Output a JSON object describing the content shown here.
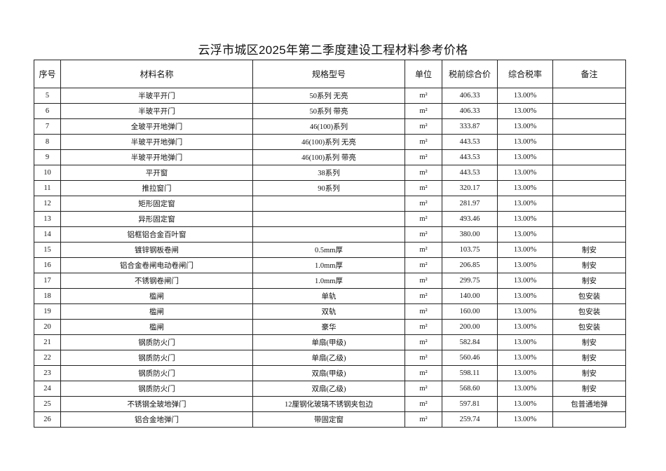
{
  "title": "云浮市城区2025年第二季度建设工程材料参考价格",
  "headers": [
    "序号",
    "材料名称",
    "规格型号",
    "单位",
    "税前综合价",
    "综合税率",
    "备注"
  ],
  "rows": [
    {
      "no": "5",
      "name": "半玻平开门",
      "spec": "50系列  无亮",
      "unit": "m²",
      "price": "406.33",
      "tax": "13.00%",
      "note": ""
    },
    {
      "no": "6",
      "name": "半玻平开门",
      "spec": "50系列  带亮",
      "unit": "m²",
      "price": "406.33",
      "tax": "13.00%",
      "note": ""
    },
    {
      "no": "7",
      "name": "全玻平开地弹门",
      "spec": "46(100)系列",
      "unit": "m²",
      "price": "333.87",
      "tax": "13.00%",
      "note": ""
    },
    {
      "no": "8",
      "name": "半玻平开地弹门",
      "spec": "46(100)系列  无亮",
      "unit": "m²",
      "price": "443.53",
      "tax": "13.00%",
      "note": ""
    },
    {
      "no": "9",
      "name": "半玻平开地弹门",
      "spec": "46(100)系列  带亮",
      "unit": "m²",
      "price": "443.53",
      "tax": "13.00%",
      "note": ""
    },
    {
      "no": "10",
      "name": "平开窗",
      "spec": "38系列",
      "unit": "m²",
      "price": "443.53",
      "tax": "13.00%",
      "note": ""
    },
    {
      "no": "11",
      "name": "推拉窗门",
      "spec": "90系列",
      "unit": "m²",
      "price": "320.17",
      "tax": "13.00%",
      "note": ""
    },
    {
      "no": "12",
      "name": "矩形固定窗",
      "spec": "",
      "unit": "m²",
      "price": "281.97",
      "tax": "13.00%",
      "note": ""
    },
    {
      "no": "13",
      "name": "异形固定窗",
      "spec": "",
      "unit": "m²",
      "price": "493.46",
      "tax": "13.00%",
      "note": ""
    },
    {
      "no": "14",
      "name": "铝框铝合金百叶窗",
      "spec": "",
      "unit": "m²",
      "price": "380.00",
      "tax": "13.00%",
      "note": ""
    },
    {
      "no": "15",
      "name": "镀锌钢板卷闸",
      "spec": "0.5mm厚",
      "unit": "m²",
      "price": "103.75",
      "tax": "13.00%",
      "note": "制安"
    },
    {
      "no": "16",
      "name": "铝合金卷闸电动卷闸门",
      "spec": "1.0mm厚",
      "unit": "m²",
      "price": "206.85",
      "tax": "13.00%",
      "note": "制安"
    },
    {
      "no": "17",
      "name": "不锈钢卷闸门",
      "spec": "1.0mm厚",
      "unit": "m²",
      "price": "299.75",
      "tax": "13.00%",
      "note": "制安"
    },
    {
      "no": "18",
      "name": "槛闸",
      "spec": "单轨",
      "unit": "m²",
      "price": "140.00",
      "tax": "13.00%",
      "note": "包安装"
    },
    {
      "no": "19",
      "name": "槛闸",
      "spec": "双轨",
      "unit": "m²",
      "price": "160.00",
      "tax": "13.00%",
      "note": "包安装"
    },
    {
      "no": "20",
      "name": "槛闸",
      "spec": "豪华",
      "unit": "m²",
      "price": "200.00",
      "tax": "13.00%",
      "note": "包安装"
    },
    {
      "no": "21",
      "name": "钢质防火门",
      "spec": "单扇(甲级)",
      "unit": "m²",
      "price": "582.84",
      "tax": "13.00%",
      "note": "制安"
    },
    {
      "no": "22",
      "name": "钢质防火门",
      "spec": "单扇(乙级)",
      "unit": "m²",
      "price": "560.46",
      "tax": "13.00%",
      "note": "制安"
    },
    {
      "no": "23",
      "name": "钢质防火门",
      "spec": "双扇(甲级)",
      "unit": "m²",
      "price": "598.11",
      "tax": "13.00%",
      "note": "制安"
    },
    {
      "no": "24",
      "name": "钢质防火门",
      "spec": "双扇(乙级)",
      "unit": "m²",
      "price": "568.60",
      "tax": "13.00%",
      "note": "制安"
    },
    {
      "no": "25",
      "name": "不锈钢全玻地弹门",
      "spec": "12厘钢化玻璃不锈钢夹包边",
      "unit": "m²",
      "price": "597.81",
      "tax": "13.00%",
      "note": "包普通地弹"
    },
    {
      "no": "26",
      "name": "铝合金地弹门",
      "spec": "带固定窗",
      "unit": "m²",
      "price": "259.74",
      "tax": "13.00%",
      "note": ""
    }
  ]
}
